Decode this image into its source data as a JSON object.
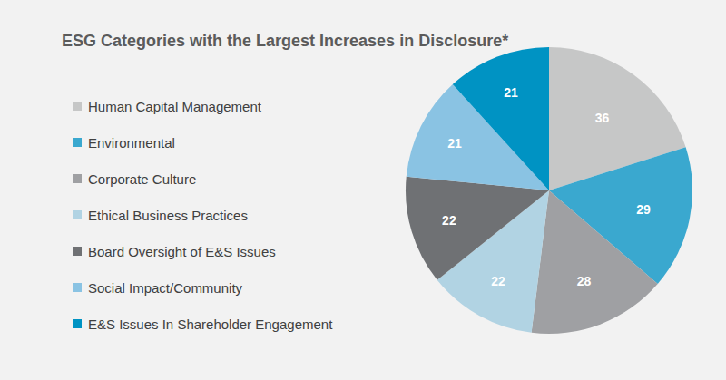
{
  "chart_data": {
    "type": "pie",
    "title": "ESG Categories with the Largest Increases in Disclosure*",
    "categories": [
      "Human Capital Management",
      "Environmental",
      "Corporate Culture",
      "Ethical Business Practices",
      "Board Oversight of E&S Issues",
      "Social Impact/Community",
      "E&S Issues In Shareholder Engagement"
    ],
    "values": [
      36,
      29,
      28,
      22,
      22,
      21,
      21
    ],
    "colors": [
      "#c6c7c7",
      "#3aa8cf",
      "#9fa0a3",
      "#b1d3e3",
      "#6f7174",
      "#8ac3e3",
      "#0093c3"
    ],
    "data_labels": true,
    "legend": "left"
  }
}
